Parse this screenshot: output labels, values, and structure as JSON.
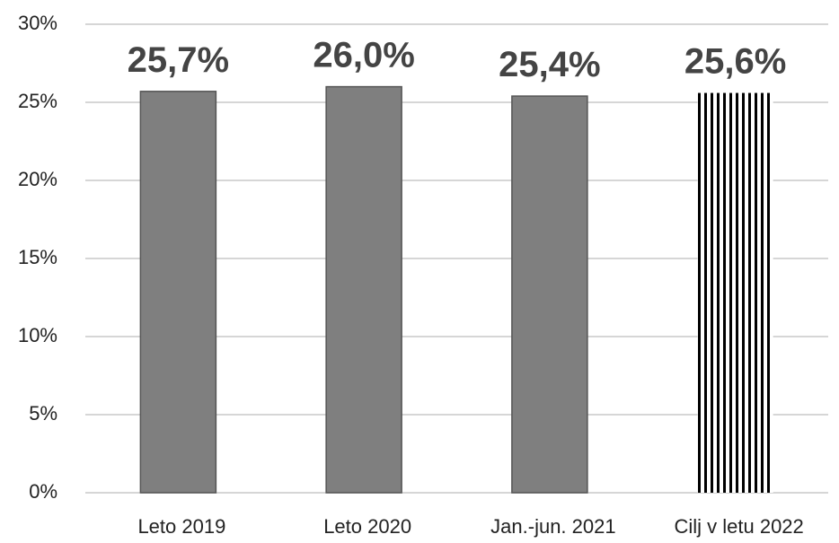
{
  "chart_data": {
    "type": "bar",
    "categories": [
      "Leto 2019",
      "Leto 2020",
      "Jan.-jun. 2021",
      "Cilj v letu 2022"
    ],
    "values": [
      25.7,
      26.0,
      25.4,
      25.6
    ],
    "value_labels": [
      "25,7%",
      "26,0%",
      "25,4%",
      "25,6%"
    ],
    "colors": [
      "#7f7f7f",
      "#7f7f7f",
      "#7f7f7f",
      "#000000"
    ],
    "hatched": [
      false,
      false,
      false,
      true
    ],
    "ylim": [
      0,
      30
    ],
    "yticks": [
      {
        "value": 0,
        "label": "0%"
      },
      {
        "value": 5,
        "label": "5%"
      },
      {
        "value": 10,
        "label": "10%"
      },
      {
        "value": 15,
        "label": "15%"
      },
      {
        "value": 20,
        "label": "20%"
      },
      {
        "value": 25,
        "label": "25%"
      },
      {
        "value": 30,
        "label": "30%"
      }
    ],
    "grid": true
  }
}
